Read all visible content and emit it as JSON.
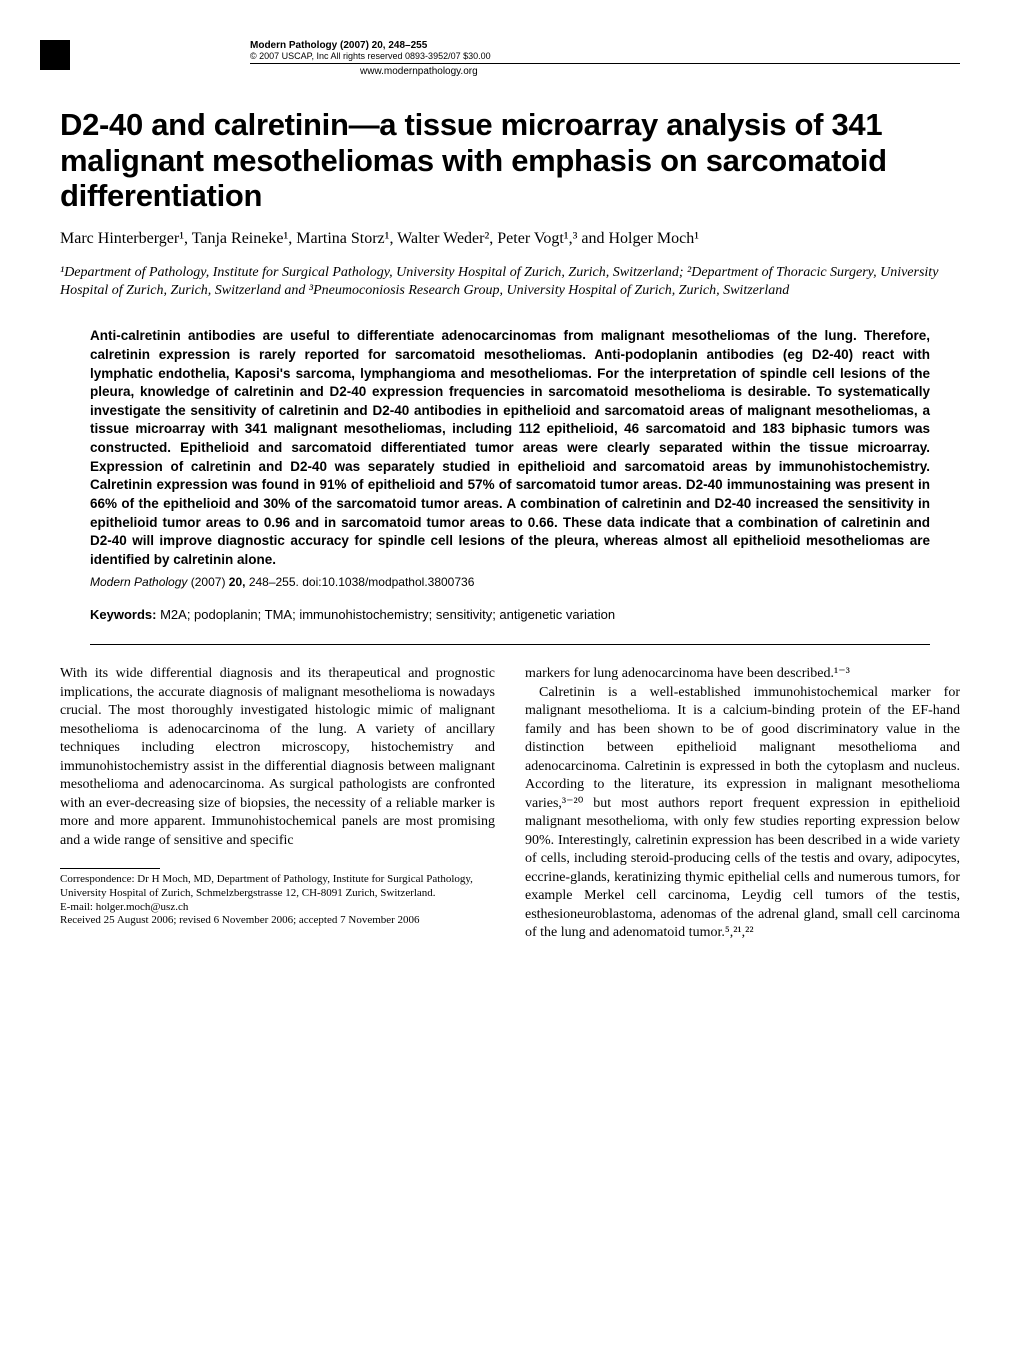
{
  "colors": {
    "text": "#000000",
    "background": "#ffffff",
    "rule": "#000000"
  },
  "header": {
    "journal_line": "Modern Pathology (2007) 20, 248–255",
    "copyright_line": "© 2007 USCAP, Inc   All rights reserved 0893-3952/07 $30.00",
    "website": "www.modernpathology.org"
  },
  "title": "D2-40 and calretinin—a tissue microarray analysis of 341 malignant mesotheliomas with emphasis on sarcomatoid differentiation",
  "authors_line": "Marc Hinterberger¹, Tanja Reineke¹, Martina Storz¹, Walter Weder², Peter Vogt¹,³ and Holger Moch¹",
  "affiliations_line": "¹Department of Pathology, Institute for Surgical Pathology, University Hospital of Zurich, Zurich, Switzerland; ²Department of Thoracic Surgery, University Hospital of Zurich, Zurich, Switzerland and ³Pneumoconiosis Research Group, University Hospital of Zurich, Zurich, Switzerland",
  "abstract": "Anti-calretinin antibodies are useful to differentiate adenocarcinomas from malignant mesotheliomas of the lung. Therefore, calretinin expression is rarely reported for sarcomatoid mesotheliomas. Anti-podoplanin antibodies (eg D2-40) react with lymphatic endothelia, Kaposi's sarcoma, lymphangioma and mesotheliomas. For the interpretation of spindle cell lesions of the pleura, knowledge of calretinin and D2-40 expression frequencies in sarcomatoid mesothelioma is desirable. To systematically investigate the sensitivity of calretinin and D2-40 antibodies in epithelioid and sarcomatoid areas of malignant mesotheliomas, a tissue microarray with 341 malignant mesotheliomas, including 112 epithelioid, 46 sarcomatoid and 183 biphasic tumors was constructed. Epithelioid and sarcomatoid differentiated tumor areas were clearly separated within the tissue microarray. Expression of calretinin and D2-40 was separately studied in epithelioid and sarcomatoid areas by immunohistochemistry. Calretinin expression was found in 91% of epithelioid and 57% of sarcomatoid tumor areas. D2-40 immunostaining was present in 66% of the epithelioid and 30% of the sarcomatoid tumor areas. A combination of calretinin and D2-40 increased the sensitivity in epithelioid tumor areas to 0.96 and in sarcomatoid tumor areas to 0.66. These data indicate that a combination of calretinin and D2-40 will improve diagnostic accuracy for spindle cell lesions of the pleura, whereas almost all epithelioid mesotheliomas are identified by calretinin alone.",
  "citation": {
    "journal": "Modern Pathology",
    "year": "(2007)",
    "volume": "20,",
    "pages": "248–255.",
    "doi": "doi:10.1038/modpathol.3800736"
  },
  "keywords": {
    "label": "Keywords:",
    "text": "M2A; podoplanin; TMA; immunohistochemistry; sensitivity; antigenetic variation"
  },
  "body": {
    "left_p1": "With its wide differential diagnosis and its therapeutical and prognostic implications, the accurate diagnosis of malignant mesothelioma is nowadays crucial. The most thoroughly investigated histologic mimic of malignant mesothelioma is adenocarcinoma of the lung. A variety of ancillary techniques including electron microscopy, histochemistry and immunohistochemistry assist in the differential diagnosis between malignant mesothelioma and adenocarcinoma. As surgical pathologists are confronted with an ever-decreasing size of biopsies, the necessity of a reliable marker is more and more apparent. Immunohistochemical panels are most promising and a wide range of sensitive and specific",
    "right_p1": "markers for lung adenocarcinoma have been described.¹⁻³",
    "right_p2": "Calretinin is a well-established immunohistochemical marker for malignant mesothelioma. It is a calcium-binding protein of the EF-hand family and has been shown to be of good discriminatory value in the distinction between epithelioid malignant mesothelioma and adenocarcinoma. Calretinin is expressed in both the cytoplasm and nucleus. According to the literature, its expression in malignant mesothelioma varies,³⁻²⁰ but most authors report frequent expression in epithelioid malignant mesothelioma, with only few studies reporting expression below 90%. Interestingly, calretinin expression has been described in a wide variety of cells, including steroid-producing cells of the testis and ovary, adipocytes, eccrine-glands, keratinizing thymic epithelial cells and numerous tumors, for example Merkel cell carcinoma, Leydig cell tumors of the testis, esthesioneuroblastoma, adenomas of the adrenal gland, small cell carcinoma of the lung and adenomatoid tumor.⁵,²¹,²²"
  },
  "footnote": {
    "line1": "Correspondence: Dr H Moch, MD, Department of Pathology, Institute for Surgical Pathology, University Hospital of Zurich, Schmelzbergstrasse 12, CH-8091 Zurich, Switzerland.",
    "line2": "E-mail: holger.moch@usz.ch",
    "line3": "Received 25 August 2006; revised 6 November 2006; accepted 7 November 2006"
  }
}
